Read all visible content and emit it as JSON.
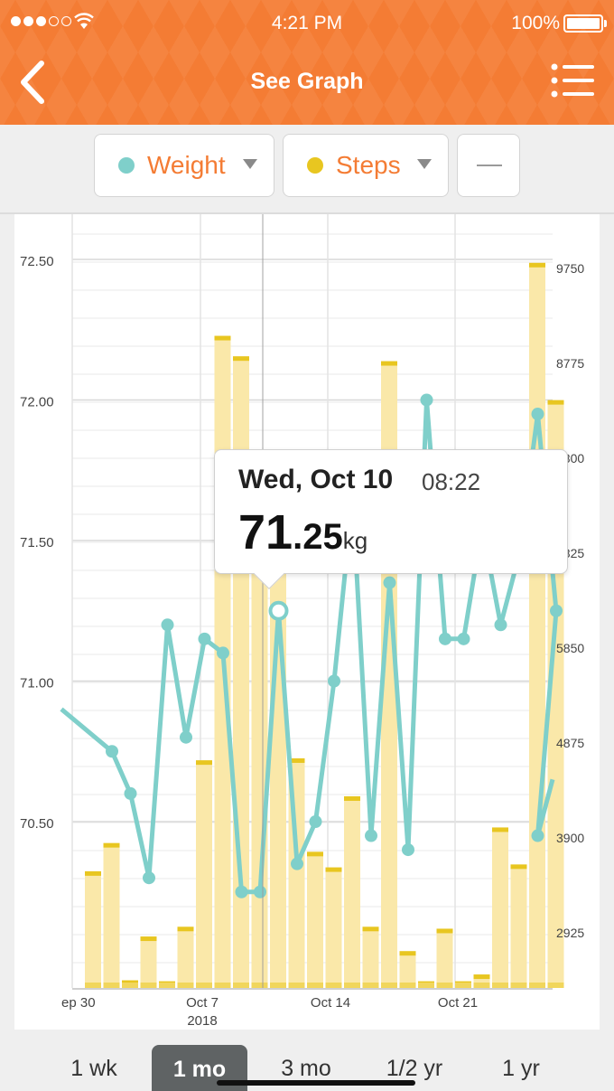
{
  "status_bar": {
    "time": "4:21 PM",
    "battery": "100%"
  },
  "nav": {
    "title": "See Graph",
    "back_icon": "chevron-left-icon",
    "menu_icon": "list-icon"
  },
  "selectors": {
    "primary": {
      "label": "Weight",
      "color": "#7fcfca"
    },
    "secondary": {
      "label": "Steps",
      "color": "#e8c620"
    },
    "tertiary": {
      "label": "—"
    }
  },
  "tooltip": {
    "day": "Wed, Oct 10",
    "time": "08:22",
    "value_int": "71",
    "value_dec": ".25",
    "unit": "kg"
  },
  "ranges": [
    {
      "label": "1 wk"
    },
    {
      "label": "1 mo",
      "selected": true
    },
    {
      "label": "3 mo"
    },
    {
      "label": "1/2 yr"
    },
    {
      "label": "1 yr"
    }
  ],
  "chart_data": {
    "type": "line+bar",
    "x_ticks": [
      "ep 30",
      "Oct 7",
      "Oct 14",
      "Oct 21"
    ],
    "x_year": "2018",
    "left_axis": {
      "ticks": [
        "72.50",
        "72.00",
        "71.50",
        "71.00",
        "70.50"
      ],
      "values": [
        72.5,
        72.0,
        71.5,
        71.0,
        70.5
      ]
    },
    "right_axis": {
      "ticks": [
        "9750",
        "8775",
        "7800",
        "6825",
        "5850",
        "4875",
        "3900",
        "2925"
      ],
      "values": [
        9750,
        8775,
        7800,
        6825,
        5850,
        4875,
        3900,
        2925
      ]
    },
    "weight_series": {
      "name": "Weight",
      "values": [
        [
          70.75,
          70.6,
          70.3
        ],
        [
          71.2
        ],
        [
          70.8
        ],
        [
          71.15,
          71.1
        ],
        [
          70.25,
          70.25
        ],
        [
          71.25
        ],
        [
          70.35,
          70.5
        ],
        [
          71.0
        ],
        [
          71.65
        ],
        [
          70.45
        ],
        [
          71.35
        ],
        [
          70.4
        ],
        [
          72.0
        ],
        [
          71.15,
          71.15
        ],
        [
          71.55
        ],
        [
          71.2
        ],
        [
          71.45
        ],
        [
          71.95
        ],
        [
          71.25
        ],
        [
          70.45
        ]
      ]
    },
    "steps_series": {
      "name": "Steps",
      "values": [
        3530,
        3820,
        2410,
        2860,
        2400,
        2960,
        4670,
        9030,
        8820,
        7090,
        6970,
        4690,
        3730,
        3570,
        4300,
        2960,
        8770,
        2710,
        2400,
        2940,
        2400,
        2470,
        3980,
        3600,
        9780,
        8370
      ]
    }
  }
}
